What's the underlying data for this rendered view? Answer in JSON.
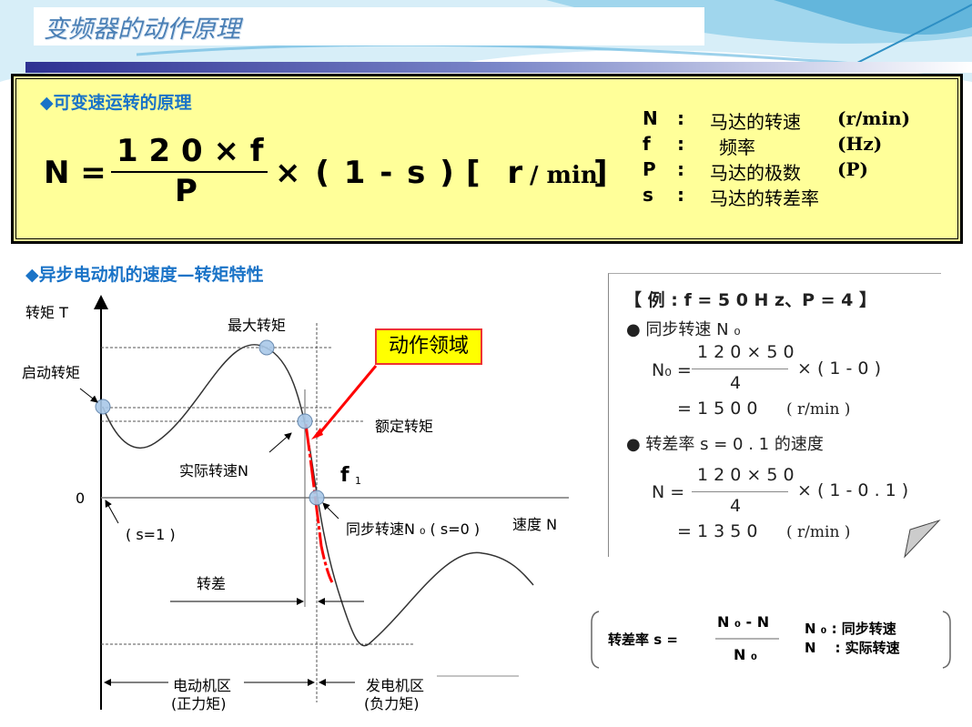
{
  "slide_title": "变频器的动作原理",
  "principle": {
    "heading": "◆可变速运转的原理",
    "lhs": "N =",
    "numerator": "1 2 0 × f",
    "denominator": "P",
    "rest": "× ( 1 - s )",
    "unit_open": "[ r",
    "unit_slash": "/ min",
    "unit_close": "]",
    "legend": [
      {
        "sym": "N",
        "sep": ":",
        "desc": "马达的转速",
        "unit": "(r/min)"
      },
      {
        "sym": "f",
        "sep": ":",
        "desc": "频率",
        "unit": "(Hz)"
      },
      {
        "sym": "P",
        "sep": ":",
        "desc": "马达的极数",
        "unit": "(P)"
      },
      {
        "sym": "s",
        "sep": ":",
        "desc": "马达的转差率",
        "unit": ""
      }
    ]
  },
  "characteristic": {
    "heading": "◆异步电动机的速度—转矩特性",
    "y_axis": "转矩 T",
    "x_axis": "速度 N",
    "zero": "0",
    "labels": {
      "max_torque": "最大转矩",
      "start_torque": "启动转矩",
      "rated_torque": "额定转矩",
      "actual_speed": "实际转速N",
      "f1": "f",
      "f1_sub": "1",
      "sync_speed": "同步转速N ₀ ( s=0 )",
      "s1": "( s=1 )",
      "slip": "转差",
      "motor_zone": "电动机区",
      "motor_zone_sub": "(正力矩)",
      "gen_zone": "发电机区",
      "gen_zone_sub": "(负力矩)",
      "operating_region": "动作领域"
    },
    "colors": {
      "curve": "#333333",
      "operating": "#ff0000",
      "callout_bg": "#ffff00",
      "point": "#a9c8e8"
    }
  },
  "example": {
    "header": "【 例 : f = 5 0 H z、P = 4 】",
    "b1": "● 同步转速 N ₀",
    "f1_lhs": "N₀ =",
    "f1_num": "1 2 0 × 5 0",
    "f1_den": "4",
    "f1_rest": "× ( 1 - 0 )",
    "f1_res": "= 1 5 0 0",
    "unit": "( r/min )",
    "b2": "● 转差率 s = 0 . 1 的速度",
    "f2_lhs": "N =",
    "f2_num": "1 2 0 × 5 0",
    "f2_den": "4",
    "f2_rest": "× ( 1 - 0 . 1 )",
    "f2_res": "= 1 3 5 0"
  },
  "slip_def": {
    "lhs": "转差率 s =",
    "num": "N ₀ - N",
    "den": "N ₀",
    "l1": "N ₀ : 同步转速",
    "l2": "N    : 实际转速"
  }
}
